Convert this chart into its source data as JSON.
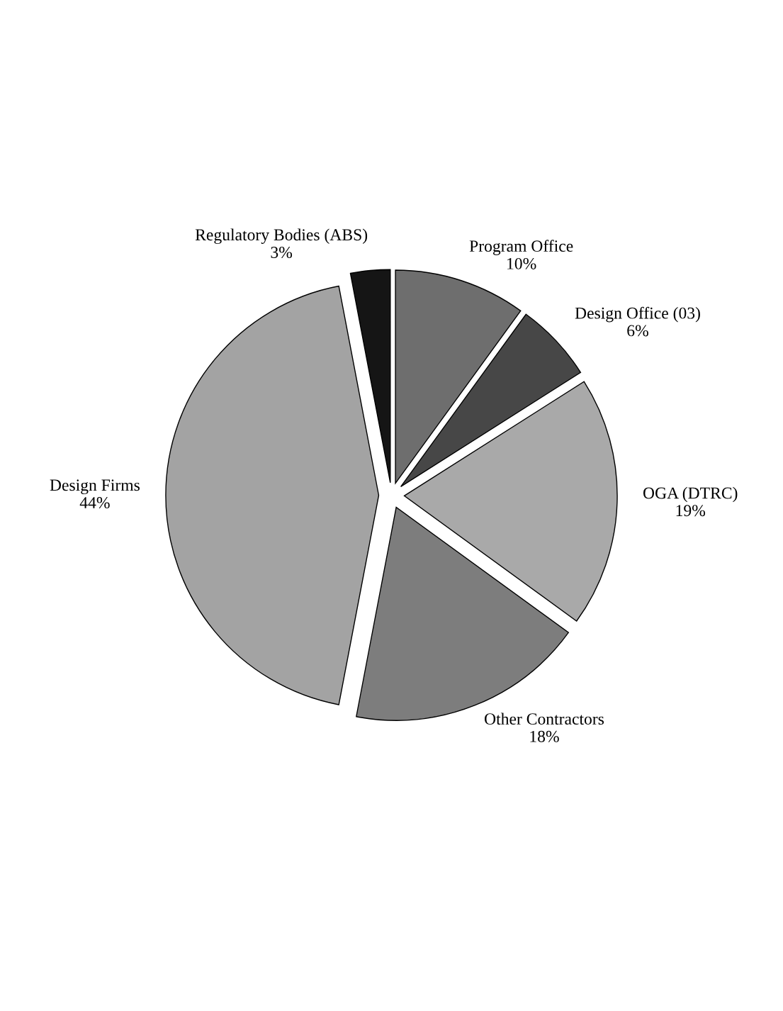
{
  "chart_data": {
    "type": "pie",
    "categories": [
      "Program Office",
      "Design Office (03)",
      "OGA (DTRC)",
      "Other Contractors",
      "Design Firms",
      "Regulatory Bodies (ABS)"
    ],
    "values": [
      10,
      6,
      19,
      18,
      44,
      3
    ],
    "value_labels": [
      "10%",
      "6%",
      "19%",
      "18%",
      "44%",
      "3%"
    ],
    "colors": [
      "#6e6e6e",
      "#474747",
      "#a9a9a9",
      "#7d7d7d",
      "#a3a3a3",
      "#151515"
    ],
    "legend": false
  }
}
